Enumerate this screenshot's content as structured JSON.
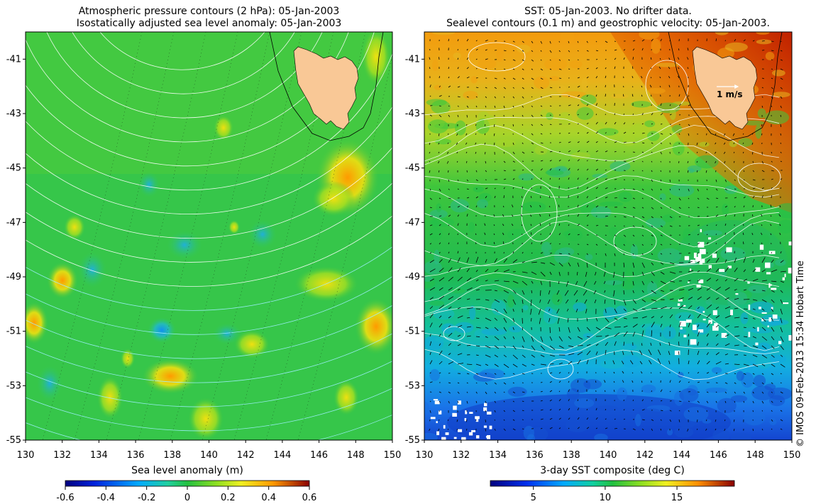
{
  "left_panel": {
    "title_line1": "Atmospheric pressure contours (2 hPa): 05-Jan-2003",
    "title_line2": "Isostatically adjusted sea level anomaly: 05-Jan-2003",
    "colorbar_label": "Sea level anomaly (m)",
    "colorbar_ticks": [
      "-0.6",
      "-0.4",
      "-0.2",
      "0",
      "0.2",
      "0.4",
      "0.6"
    ],
    "colorbar_range": [
      -0.6,
      0.6
    ]
  },
  "right_panel": {
    "title_line1": "SST: 05-Jan-2003. No drifter data.",
    "title_line2": "Sealevel contours (0.1 m) and geostrophic velocity: 05-Jan-2003.",
    "colorbar_label": "3-day SST composite (deg C)",
    "colorbar_ticks": [
      "5",
      "10",
      "15"
    ],
    "colorbar_tick_values": [
      5,
      10,
      15
    ],
    "colorbar_range": [
      2,
      19
    ],
    "velocity_scale_label": "1 m/s"
  },
  "axes": {
    "lat_ticks": [
      "-41",
      "-43",
      "-45",
      "-47",
      "-49",
      "-51",
      "-53",
      "-55"
    ],
    "lon_ticks": [
      "130",
      "132",
      "134",
      "136",
      "138",
      "140",
      "142",
      "144",
      "146",
      "148",
      "150"
    ],
    "lat_range": [
      -55,
      -40
    ],
    "lon_range": [
      130,
      150
    ]
  },
  "credit": "© IMOS 09-Feb-2013 15:34 Hobart Time",
  "colors": {
    "land": "#f9c896",
    "ocean_mid": "#2cc84a",
    "contour": "#ffffff"
  }
}
